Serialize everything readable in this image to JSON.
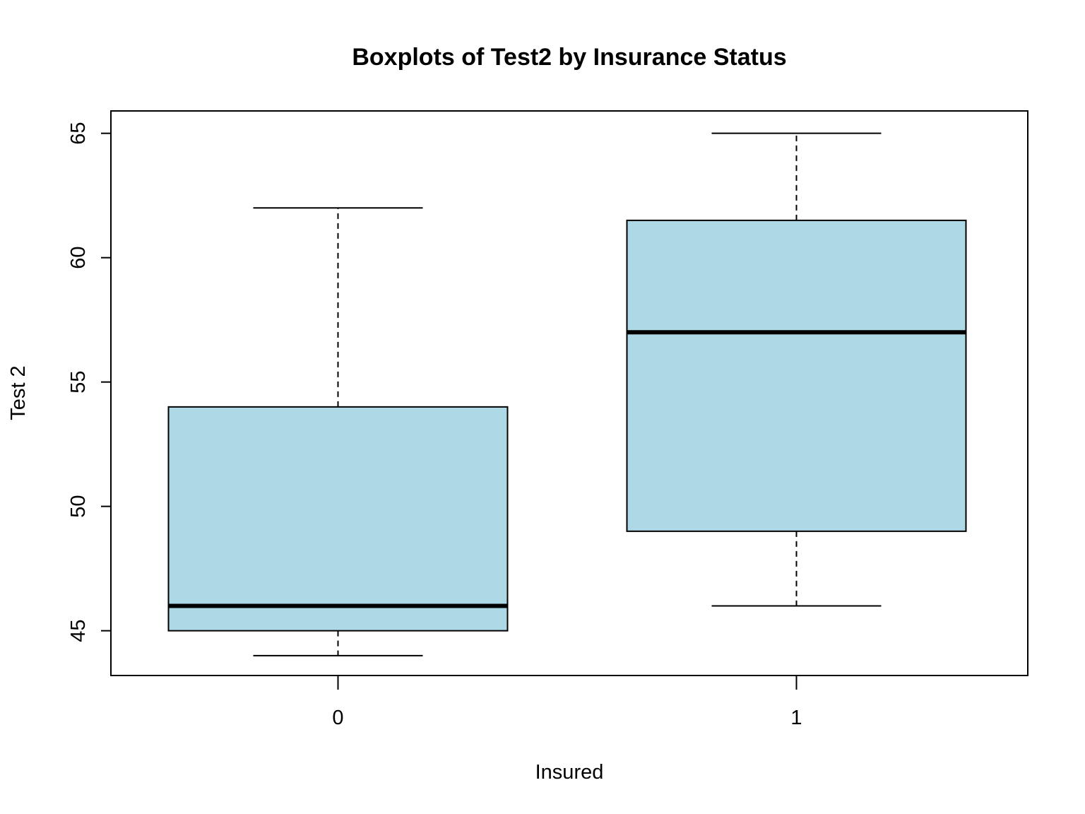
{
  "chart_data": {
    "type": "boxplot",
    "title": "Boxplots of Test2 by Insurance Status",
    "xlabel": "Insured",
    "ylabel": "Test 2",
    "categories": [
      "0",
      "1"
    ],
    "boxes": [
      {
        "category": "0",
        "min": 44,
        "q1": 45,
        "median": 46,
        "q3": 54,
        "max": 62
      },
      {
        "category": "1",
        "min": 46,
        "q1": 49,
        "median": 57,
        "q3": 61.5,
        "max": 65
      }
    ],
    "yticks": [
      45,
      50,
      55,
      60,
      65
    ],
    "ylim": [
      43.2,
      65.9
    ],
    "box_color": "#add8e6",
    "grid": false
  }
}
